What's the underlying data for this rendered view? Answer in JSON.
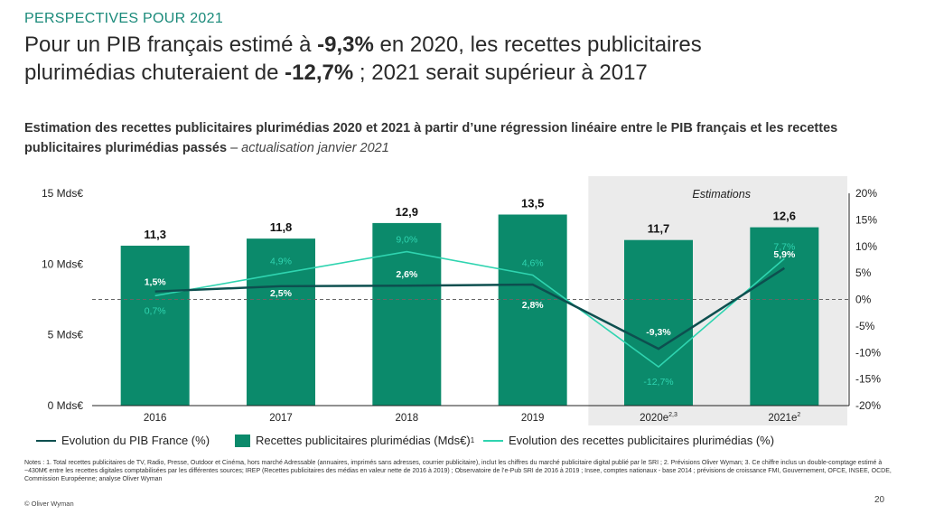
{
  "kicker": "PERSPECTIVES POUR 2021",
  "headline": {
    "l1_a": "Pour un PIB français estimé à ",
    "l1_b": "-9,3%",
    "l1_c": " en 2020, les recettes publicitaires",
    "l2_a": "plurimédias chuteraient de ",
    "l2_b": "-12,7%",
    "l2_c": " ; 2021 serait supérieur à 2017"
  },
  "subtitle": {
    "bold": "Estimation des recettes publicitaires plurimédias 2020 et 2021 à partir d’une régression linéaire entre le PIB français et les recettes publicitaires plurimédias passés",
    "dash": " – ",
    "italic": "actualisation janvier 2021"
  },
  "colors": {
    "bar": "#0b8a6b",
    "pib_line": "#0d4f4f",
    "rec_line": "#2fd4b0",
    "shade": "#ebebeb",
    "kicker": "#1a8a7a"
  },
  "legend": {
    "pib": "Evolution du PIB France (%)",
    "bars": "Recettes publicitaires plurimédias (Mds€)",
    "bars_sup": "1",
    "rec": "Evolution des recettes publicitaires plurimédias (%)"
  },
  "notes": "Notes : 1. Total recettes publicitaires de TV, Radio, Presse, Outdoor et Cinéma, hors marché Adressable (annuaires, imprimés sans adresses, courrier publicitaire), inclut les chiffres du marché publicitaire digital publié par le SRI ; 2. Prévisions Oliver Wyman; 3. Ce chiffre inclus un double-comptage estimé à ~430M€ entre les recettes digitales comptabilisées par les différentes sources; IREP (Recettes publicitaires des médias en valeur nette de 2016 à 2019) ; Observatoire de l’e-Pub SRI de 2016 à 2019 ; Insee, comptes nationaux - base 2014 ; prévisions de croissance FMI, Gouvernement, OFCE, INSEE, OCDE, Commission Européenne; analyse Oliver Wyman",
  "footer": {
    "copyright": "© Oliver Wyman",
    "page": "20"
  },
  "chart_data": {
    "type": "bar",
    "categories": [
      "2016",
      "2017",
      "2018",
      "2019",
      "2020e",
      "2021e"
    ],
    "category_superscripts": [
      "",
      "",
      "",
      "",
      "2,3",
      "2"
    ],
    "series": [
      {
        "name": "Recettes publicitaires plurimédias (Mds€)",
        "type": "bar",
        "axis": "left",
        "values": [
          11.3,
          11.8,
          12.9,
          13.5,
          11.7,
          12.6
        ],
        "labels": [
          "11,3",
          "11,8",
          "12,9",
          "13,5",
          "11,7",
          "12,6"
        ]
      },
      {
        "name": "Evolution du PIB France (%)",
        "type": "line",
        "axis": "right",
        "values": [
          1.5,
          2.5,
          2.6,
          2.8,
          -9.3,
          5.9
        ],
        "labels": [
          "1,5%",
          "2,5%",
          "2,6%",
          "2,8%",
          "-9,3%",
          "5,9%"
        ]
      },
      {
        "name": "Evolution des recettes publicitaires plurimédias (%)",
        "type": "line",
        "axis": "right",
        "values": [
          0.7,
          4.9,
          9.0,
          4.6,
          -12.7,
          7.7
        ],
        "labels": [
          "0,7%",
          "4,9%",
          "9,0%",
          "4,6%",
          "-12,7%",
          "7,7%"
        ]
      }
    ],
    "left_axis": {
      "ylim": [
        0,
        15
      ],
      "ticks": [
        0,
        5,
        10,
        15
      ],
      "tick_labels": [
        "0 Mds€",
        "5 Mds€",
        "10 Mds€",
        "15 Mds€"
      ]
    },
    "right_axis": {
      "ylim": [
        -20,
        20
      ],
      "ticks": [
        -20,
        -15,
        -10,
        -5,
        0,
        5,
        10,
        15,
        20
      ],
      "tick_labels": [
        "-20%",
        "-15%",
        "-10%",
        "-5%",
        "0%",
        "5%",
        "10%",
        "15%",
        "20%"
      ]
    },
    "shaded_region": {
      "from": "2020e",
      "to": "2021e",
      "label": "Estimations"
    },
    "zero_line": "dashed"
  }
}
